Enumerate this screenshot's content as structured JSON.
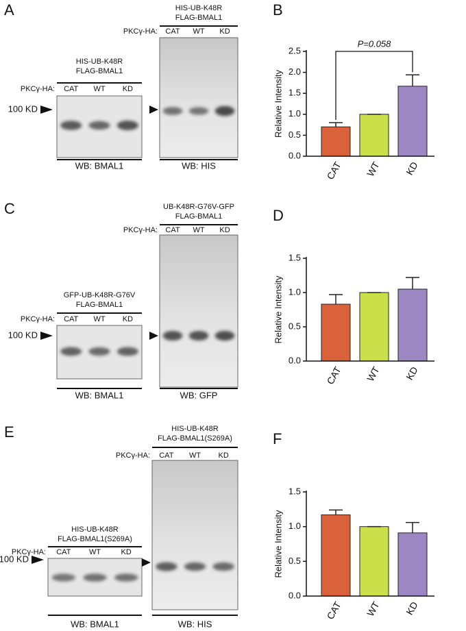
{
  "panel_labels": [
    "A",
    "B",
    "C",
    "D",
    "E",
    "F"
  ],
  "blots": [
    {
      "header": [
        "HIS-UB-K48R",
        "FLAG-BMAL1"
      ],
      "row_label": "PKCγ-HA:",
      "lanes": [
        "CAT",
        "WT",
        "KD"
      ],
      "marker": "100 KD",
      "footer": "WB: BMAL1"
    },
    {
      "header": [
        "HIS-UB-K48R",
        "FLAG-BMAL1"
      ],
      "row_label": "PKCγ-HA:",
      "lanes": [
        "CAT",
        "WT",
        "KD"
      ],
      "footer": "WB: HIS"
    },
    {
      "header": [
        "GFP-UB-K48R-G76V",
        "FLAG-BMAL1"
      ],
      "row_label": "PKCγ-HA:",
      "lanes": [
        "CAT",
        "WT",
        "KD"
      ],
      "marker": "100 KD",
      "footer": "WB: BMAL1"
    },
    {
      "header": [
        "UB-K48R-G76V-GFP",
        "FLAG-BMAL1"
      ],
      "row_label": "PKCγ-HA:",
      "lanes": [
        "CAT",
        "WT",
        "KD"
      ],
      "footer": "WB: GFP"
    },
    {
      "header": [
        "HIS-UB-K48R",
        "FLAG-BMAL1(S269A)"
      ],
      "row_label": "PKCγ-HA:",
      "lanes": [
        "CAT",
        "WT",
        "KD"
      ],
      "marker": "100 KD",
      "footer": "WB: BMAL1"
    },
    {
      "header": [
        "HIS-UB-K48R",
        "FLAG-BMAL1(S269A)"
      ],
      "row_label": "PKCγ-HA:",
      "lanes": [
        "CAT",
        "WT",
        "KD"
      ],
      "footer": "WB: HIS"
    }
  ],
  "chart_data": [
    {
      "type": "bar",
      "y_label": "Relative Intensity",
      "categories": [
        "CAT",
        "WT",
        "KD"
      ],
      "values": [
        0.7,
        1.0,
        1.67
      ],
      "errors": [
        0.1,
        0,
        0.27
      ],
      "colors": [
        "#d9623b",
        "#c9e04a",
        "#9b87c1"
      ],
      "ylim": [
        0,
        2.5
      ],
      "yticks": [
        {
          "value": 0,
          "label": "0.0"
        },
        0.5,
        {
          "value": 1,
          "label": "1.0"
        },
        1.5,
        {
          "value": 2,
          "label": "2.0"
        },
        2.5
      ],
      "annotation": "P=0.058"
    },
    {
      "type": "bar",
      "y_label": "Relative Intensity",
      "categories": [
        "CAT",
        "WT",
        "KD"
      ],
      "values": [
        0.83,
        1.0,
        1.05
      ],
      "errors": [
        0.14,
        0,
        0.17
      ],
      "colors": [
        "#d9623b",
        "#c9e04a",
        "#9b87c1"
      ],
      "ylim": [
        0,
        1.5
      ],
      "yticks": [
        {
          "value": 0,
          "label": "0.0"
        },
        0.5,
        {
          "value": 1,
          "label": "1.0"
        },
        1.5
      ]
    },
    {
      "type": "bar",
      "y_label": "Relative Intensity",
      "categories": [
        "CAT",
        "WT",
        "KD"
      ],
      "values": [
        1.17,
        1.0,
        0.91
      ],
      "errors": [
        0.07,
        0,
        0.15
      ],
      "colors": [
        "#d9623b",
        "#c9e04a",
        "#9b87c1"
      ],
      "ylim": [
        0,
        1.5
      ],
      "yticks": [
        {
          "value": 0,
          "label": "0.0"
        },
        0.5,
        {
          "value": 1,
          "label": "1.0"
        },
        1.5
      ]
    }
  ]
}
